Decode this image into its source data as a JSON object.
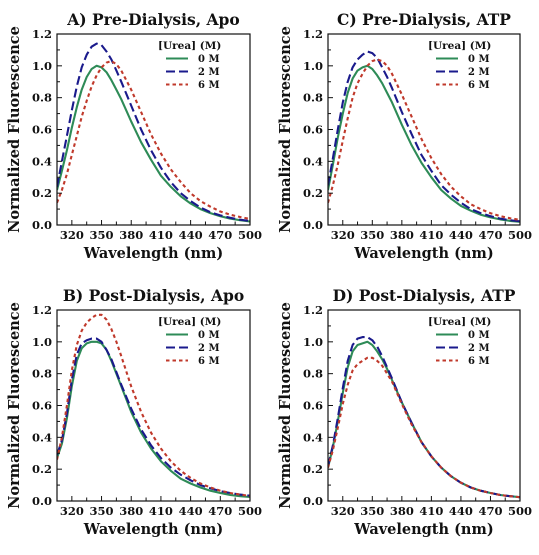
{
  "chart_data": [
    {
      "type": "line",
      "title": "A) Pre-Dialysis, Apo",
      "xlabel": "Wavelength (nm)",
      "ylabel": "Normalized Fluorescence",
      "xlim": [
        305,
        500
      ],
      "ylim": [
        0,
        1.2
      ],
      "xticks": [
        320,
        350,
        380,
        410,
        440,
        470,
        500
      ],
      "yticks": [
        0.0,
        0.2,
        0.4,
        0.6,
        0.8,
        1.0,
        1.2
      ],
      "legend_title": "[Urea] (M)",
      "legend_position": "top-right",
      "series": [
        {
          "name": "0 M",
          "color": "#2e8b57",
          "x": [
            305,
            310,
            315,
            320,
            325,
            330,
            335,
            340,
            345,
            350,
            355,
            360,
            365,
            370,
            380,
            390,
            400,
            410,
            420,
            430,
            440,
            450,
            460,
            470,
            480,
            490,
            500
          ],
          "values": [
            0.22,
            0.34,
            0.47,
            0.61,
            0.74,
            0.85,
            0.93,
            0.98,
            1.0,
            0.99,
            0.96,
            0.91,
            0.85,
            0.79,
            0.65,
            0.52,
            0.41,
            0.31,
            0.24,
            0.18,
            0.135,
            0.1,
            0.075,
            0.055,
            0.04,
            0.03,
            0.022
          ]
        },
        {
          "name": "2 M",
          "color": "#1a1a8c",
          "x": [
            305,
            310,
            315,
            320,
            325,
            330,
            335,
            340,
            345,
            350,
            355,
            360,
            365,
            370,
            380,
            390,
            400,
            410,
            420,
            430,
            440,
            450,
            460,
            470,
            480,
            490,
            500
          ],
          "values": [
            0.24,
            0.4,
            0.56,
            0.72,
            0.87,
            0.99,
            1.07,
            1.12,
            1.14,
            1.13,
            1.09,
            1.04,
            0.97,
            0.9,
            0.75,
            0.6,
            0.47,
            0.36,
            0.27,
            0.2,
            0.15,
            0.11,
            0.08,
            0.06,
            0.045,
            0.033,
            0.025
          ]
        },
        {
          "name": "6 M",
          "color": "#c0392b",
          "x": [
            305,
            310,
            315,
            320,
            325,
            330,
            335,
            340,
            345,
            350,
            355,
            360,
            365,
            370,
            380,
            390,
            400,
            410,
            420,
            430,
            440,
            450,
            460,
            470,
            480,
            490,
            500
          ],
          "values": [
            0.14,
            0.22,
            0.32,
            0.44,
            0.56,
            0.68,
            0.78,
            0.87,
            0.94,
            0.99,
            1.02,
            1.03,
            1.01,
            0.97,
            0.85,
            0.71,
            0.57,
            0.45,
            0.35,
            0.27,
            0.2,
            0.15,
            0.115,
            0.085,
            0.065,
            0.05,
            0.038
          ]
        }
      ]
    },
    {
      "type": "line",
      "title": "C) Pre-Dialysis, ATP",
      "xlabel": "Wavelength (nm)",
      "ylabel": "Normalized Fluorescence",
      "xlim": [
        305,
        500
      ],
      "ylim": [
        0,
        1.2
      ],
      "xticks": [
        320,
        350,
        380,
        410,
        440,
        470,
        500
      ],
      "yticks": [
        0.0,
        0.2,
        0.4,
        0.6,
        0.8,
        1.0,
        1.2
      ],
      "legend_title": "[Urea] (M)",
      "legend_position": "top-right",
      "series": [
        {
          "name": "0 M",
          "color": "#2e8b57",
          "x": [
            305,
            310,
            315,
            320,
            325,
            330,
            335,
            340,
            345,
            350,
            355,
            360,
            365,
            370,
            380,
            390,
            400,
            410,
            420,
            430,
            440,
            450,
            460,
            470,
            480,
            490,
            500
          ],
          "values": [
            0.22,
            0.38,
            0.55,
            0.7,
            0.83,
            0.92,
            0.97,
            0.99,
            1.0,
            0.98,
            0.94,
            0.89,
            0.83,
            0.77,
            0.63,
            0.5,
            0.39,
            0.3,
            0.22,
            0.165,
            0.12,
            0.09,
            0.065,
            0.048,
            0.035,
            0.026,
            0.02
          ]
        },
        {
          "name": "2 M",
          "color": "#1a1a8c",
          "x": [
            305,
            310,
            315,
            320,
            325,
            330,
            335,
            340,
            345,
            350,
            355,
            360,
            365,
            370,
            380,
            390,
            400,
            410,
            420,
            430,
            440,
            450,
            460,
            470,
            480,
            490,
            500
          ],
          "values": [
            0.25,
            0.42,
            0.6,
            0.77,
            0.9,
            0.99,
            1.04,
            1.07,
            1.09,
            1.08,
            1.05,
            0.99,
            0.93,
            0.86,
            0.71,
            0.57,
            0.44,
            0.34,
            0.25,
            0.19,
            0.14,
            0.1,
            0.075,
            0.055,
            0.04,
            0.03,
            0.023
          ]
        },
        {
          "name": "6 M",
          "color": "#c0392b",
          "x": [
            305,
            310,
            315,
            320,
            325,
            330,
            335,
            340,
            345,
            350,
            355,
            360,
            365,
            370,
            380,
            390,
            400,
            410,
            420,
            430,
            440,
            450,
            460,
            470,
            480,
            490,
            500
          ],
          "values": [
            0.14,
            0.25,
            0.38,
            0.53,
            0.67,
            0.8,
            0.89,
            0.95,
            1.0,
            1.03,
            1.04,
            1.03,
            1.0,
            0.95,
            0.82,
            0.68,
            0.54,
            0.42,
            0.32,
            0.24,
            0.18,
            0.13,
            0.1,
            0.074,
            0.055,
            0.042,
            0.032
          ]
        }
      ]
    },
    {
      "type": "line",
      "title": "B) Post-Dialysis, Apo",
      "xlabel": "Wavelength (nm)",
      "ylabel": "Normalized Fluorescence",
      "xlim": [
        305,
        500
      ],
      "ylim": [
        0,
        1.2
      ],
      "xticks": [
        320,
        350,
        380,
        410,
        440,
        470,
        500
      ],
      "yticks": [
        0.0,
        0.2,
        0.4,
        0.6,
        0.8,
        1.0,
        1.2
      ],
      "legend_title": "[Urea] (M)",
      "legend_position": "top-right",
      "series": [
        {
          "name": "0 M",
          "color": "#2e8b57",
          "x": [
            305,
            310,
            315,
            320,
            325,
            330,
            335,
            340,
            345,
            350,
            355,
            360,
            365,
            370,
            380,
            390,
            400,
            410,
            420,
            430,
            440,
            450,
            460,
            470,
            480,
            490,
            500
          ],
          "values": [
            0.27,
            0.36,
            0.52,
            0.72,
            0.88,
            0.96,
            0.99,
            1.0,
            1.0,
            0.99,
            0.95,
            0.88,
            0.8,
            0.72,
            0.56,
            0.43,
            0.33,
            0.25,
            0.19,
            0.14,
            0.11,
            0.085,
            0.065,
            0.05,
            0.038,
            0.03,
            0.025
          ]
        },
        {
          "name": "2 M",
          "color": "#1a1a8c",
          "x": [
            305,
            310,
            315,
            320,
            325,
            330,
            335,
            340,
            345,
            350,
            355,
            360,
            365,
            370,
            380,
            390,
            400,
            410,
            420,
            430,
            440,
            450,
            460,
            470,
            480,
            490,
            500
          ],
          "values": [
            0.29,
            0.38,
            0.55,
            0.76,
            0.92,
            0.99,
            1.01,
            1.02,
            1.02,
            1.0,
            0.95,
            0.89,
            0.81,
            0.73,
            0.58,
            0.45,
            0.35,
            0.27,
            0.21,
            0.165,
            0.13,
            0.1,
            0.08,
            0.062,
            0.05,
            0.04,
            0.033
          ]
        },
        {
          "name": "6 M",
          "color": "#c0392b",
          "x": [
            305,
            310,
            315,
            320,
            325,
            330,
            335,
            340,
            345,
            350,
            355,
            360,
            365,
            370,
            380,
            390,
            400,
            410,
            420,
            430,
            440,
            450,
            460,
            470,
            480,
            490,
            500
          ],
          "values": [
            0.26,
            0.4,
            0.6,
            0.82,
            0.98,
            1.07,
            1.12,
            1.15,
            1.17,
            1.17,
            1.14,
            1.08,
            1.0,
            0.91,
            0.72,
            0.56,
            0.43,
            0.33,
            0.25,
            0.19,
            0.145,
            0.11,
            0.085,
            0.065,
            0.05,
            0.04,
            0.032
          ]
        }
      ]
    },
    {
      "type": "line",
      "title": "D) Post-Dialysis, ATP",
      "xlabel": "Wavelength (nm)",
      "ylabel": "Normalized Fluorescence",
      "xlim": [
        305,
        500
      ],
      "ylim": [
        0,
        1.2
      ],
      "xticks": [
        320,
        350,
        380,
        410,
        440,
        470,
        500
      ],
      "yticks": [
        0.0,
        0.2,
        0.4,
        0.6,
        0.8,
        1.0,
        1.2
      ],
      "legend_title": "[Urea] (M)",
      "legend_position": "top-right",
      "series": [
        {
          "name": "0 M",
          "color": "#2e8b57",
          "x": [
            305,
            310,
            315,
            320,
            325,
            330,
            335,
            340,
            345,
            350,
            355,
            360,
            365,
            370,
            380,
            390,
            400,
            410,
            420,
            430,
            440,
            450,
            460,
            470,
            480,
            490,
            500
          ],
          "values": [
            0.21,
            0.34,
            0.5,
            0.68,
            0.84,
            0.94,
            0.98,
            0.99,
            1.0,
            0.98,
            0.94,
            0.89,
            0.83,
            0.76,
            0.62,
            0.49,
            0.37,
            0.28,
            0.21,
            0.155,
            0.115,
            0.085,
            0.065,
            0.05,
            0.038,
            0.03,
            0.024
          ]
        },
        {
          "name": "2 M",
          "color": "#1a1a8c",
          "x": [
            305,
            310,
            315,
            320,
            325,
            330,
            335,
            340,
            345,
            350,
            355,
            360,
            365,
            370,
            380,
            390,
            400,
            410,
            420,
            430,
            440,
            450,
            460,
            470,
            480,
            490,
            500
          ],
          "values": [
            0.22,
            0.35,
            0.52,
            0.71,
            0.88,
            0.98,
            1.02,
            1.03,
            1.03,
            1.01,
            0.97,
            0.91,
            0.84,
            0.77,
            0.62,
            0.49,
            0.37,
            0.28,
            0.21,
            0.155,
            0.115,
            0.085,
            0.065,
            0.05,
            0.038,
            0.03,
            0.024
          ]
        },
        {
          "name": "6 M",
          "color": "#c0392b",
          "x": [
            305,
            310,
            315,
            320,
            325,
            330,
            335,
            340,
            345,
            350,
            355,
            360,
            365,
            370,
            380,
            390,
            400,
            410,
            420,
            430,
            440,
            450,
            460,
            470,
            480,
            490,
            500
          ],
          "values": [
            0.21,
            0.32,
            0.46,
            0.61,
            0.73,
            0.82,
            0.86,
            0.88,
            0.9,
            0.9,
            0.88,
            0.85,
            0.8,
            0.75,
            0.61,
            0.48,
            0.37,
            0.28,
            0.21,
            0.155,
            0.115,
            0.085,
            0.065,
            0.05,
            0.038,
            0.03,
            0.024
          ]
        }
      ]
    }
  ]
}
